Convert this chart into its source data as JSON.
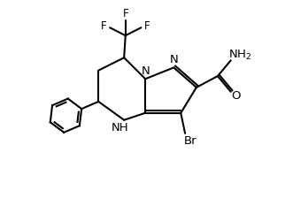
{
  "background_color": "#ffffff",
  "line_color": "#000000",
  "line_width": 1.5,
  "font_size": 8.5,
  "figsize": [
    3.22,
    2.33
  ],
  "dpi": 100,
  "xlim": [
    0,
    10
  ],
  "ylim": [
    0,
    7.2
  ]
}
